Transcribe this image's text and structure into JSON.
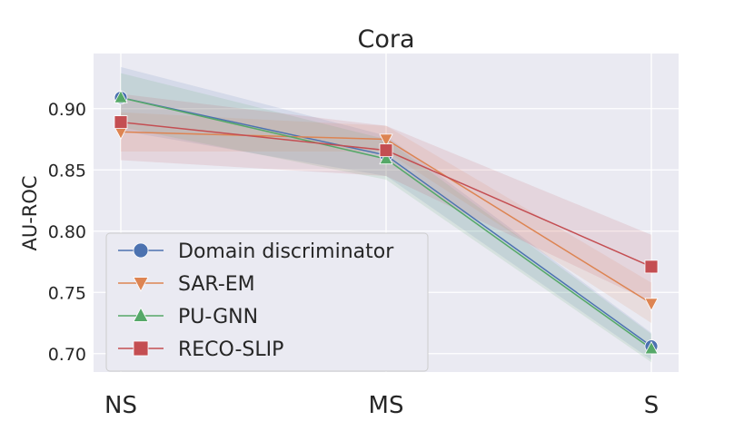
{
  "chart_data": {
    "type": "line",
    "title": "Cora",
    "xlabel": "",
    "ylabel": "AU-ROC",
    "categories": [
      "NS",
      "MS",
      "S"
    ],
    "ylim": [
      0.685,
      0.945
    ],
    "yticks": [
      "0.70",
      "0.75",
      "0.80",
      "0.85",
      "0.90"
    ],
    "grid": true,
    "legend_position": "lower-left",
    "series": [
      {
        "name": "Domain discriminator",
        "color": "#4c72b0",
        "marker": "circle",
        "values": [
          0.909,
          0.862,
          0.706
        ],
        "band": [
          [
            0.882,
            0.934
          ],
          [
            0.845,
            0.878
          ],
          [
            0.695,
            0.717
          ]
        ]
      },
      {
        "name": "SAR-EM",
        "color": "#dd8452",
        "marker": "triangle-down",
        "values": [
          0.881,
          0.875,
          0.741
        ],
        "band": [
          [
            0.865,
            0.897
          ],
          [
            0.865,
            0.886
          ],
          [
            0.725,
            0.758
          ]
        ]
      },
      {
        "name": "PU-GNN",
        "color": "#55a868",
        "marker": "triangle-up",
        "values": [
          0.909,
          0.859,
          0.704
        ],
        "band": [
          [
            0.885,
            0.929
          ],
          [
            0.842,
            0.875
          ],
          [
            0.693,
            0.716
          ]
        ]
      },
      {
        "name": "RECO-SLIP",
        "color": "#c44e52",
        "marker": "square",
        "values": [
          0.889,
          0.866,
          0.771
        ],
        "band": [
          [
            0.858,
            0.912
          ],
          [
            0.845,
            0.886
          ],
          [
            0.742,
            0.797
          ]
        ]
      }
    ]
  }
}
